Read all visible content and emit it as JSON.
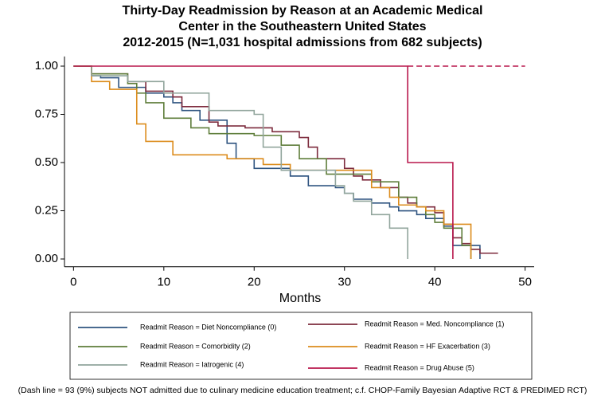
{
  "chart_data": {
    "type": "line",
    "drawstyle": "steps-post",
    "title": [
      "Thirty-Day Readmission by Reason at an Academic Medical",
      "Center in the Southeastern United States",
      "2012-2015 (N=1,031 hospital admissions from 682 subjects)"
    ],
    "x_label": "Months",
    "xlim": [
      -1,
      51
    ],
    "xticks": [
      0,
      10,
      20,
      30,
      40,
      50
    ],
    "ylim": [
      -0.04,
      1.05
    ],
    "yticks": [
      {
        "value": 0,
        "label": "0.00"
      },
      {
        "value": 0.25,
        "label": "0.25"
      },
      {
        "value": 0.5,
        "label": "0.50"
      },
      {
        "value": 0.75,
        "label": "0.75"
      },
      {
        "value": 1,
        "label": "1.00"
      }
    ],
    "grid": false,
    "series": [
      {
        "name": "Readmit Reason = Diet Noncompliance (0)",
        "color": "#2f5480",
        "x": [
          0,
          2,
          3,
          5,
          8,
          10,
          11,
          12,
          14,
          17,
          18,
          20,
          24,
          26,
          29,
          30,
          31,
          33,
          35,
          36,
          38,
          39,
          41,
          42,
          44,
          45
        ],
        "values": [
          1,
          0.95,
          0.94,
          0.89,
          0.86,
          0.84,
          0.81,
          0.77,
          0.72,
          0.6,
          0.52,
          0.47,
          0.43,
          0.38,
          0.37,
          0.34,
          0.31,
          0.29,
          0.27,
          0.25,
          0.23,
          0.21,
          0.17,
          0.07,
          0.07,
          0
        ]
      },
      {
        "name": "Readmit Reason = Med. Noncompliance (1)",
        "color": "#7d2b3d",
        "x": [
          0,
          2,
          6,
          8,
          11,
          12,
          15,
          16,
          19,
          22,
          25,
          26,
          27,
          30,
          31,
          32,
          34,
          36,
          37,
          38,
          40,
          41,
          42,
          43,
          44,
          45,
          47
        ],
        "values": [
          1,
          0.96,
          0.92,
          0.87,
          0.84,
          0.79,
          0.71,
          0.69,
          0.68,
          0.66,
          0.63,
          0.58,
          0.52,
          0.47,
          0.43,
          0.41,
          0.37,
          0.32,
          0.29,
          0.27,
          0.24,
          0.18,
          0.11,
          0.08,
          0.05,
          0.03,
          0.03
        ]
      },
      {
        "name": "Readmit Reason = Comorbidity (2)",
        "color": "#5e7d3a",
        "x": [
          0,
          2,
          6,
          7,
          8,
          10,
          13,
          15,
          20,
          23,
          25,
          28,
          33,
          36,
          38,
          39,
          40,
          41,
          43,
          44
        ],
        "values": [
          1,
          0.96,
          0.91,
          0.86,
          0.81,
          0.73,
          0.68,
          0.65,
          0.64,
          0.59,
          0.52,
          0.44,
          0.4,
          0.32,
          0.27,
          0.23,
          0.19,
          0.16,
          0.07,
          0
        ]
      },
      {
        "name": "Readmit Reason = HF Exacerbation (3)",
        "color": "#dc8c1c",
        "x": [
          0,
          2,
          4,
          7,
          8,
          11,
          17,
          21,
          24,
          28,
          33,
          35,
          36,
          38,
          39,
          41,
          43,
          44
        ],
        "values": [
          1,
          0.92,
          0.88,
          0.7,
          0.61,
          0.54,
          0.52,
          0.49,
          0.46,
          0.46,
          0.37,
          0.32,
          0.28,
          0.27,
          0.25,
          0.18,
          0.18,
          0
        ]
      },
      {
        "name": "Readmit Reason = Iatrogenic (4)",
        "color": "#91a59c",
        "x": [
          0,
          2,
          6,
          10,
          15,
          17,
          20,
          21,
          23,
          27,
          29,
          30,
          31,
          33,
          35,
          36,
          37
        ],
        "values": [
          1,
          0.95,
          0.92,
          0.86,
          0.77,
          0.77,
          0.75,
          0.58,
          0.46,
          0.46,
          0.38,
          0.34,
          0.3,
          0.23,
          0.16,
          0.16,
          0
        ]
      },
      {
        "name": "Readmit Reason = Drug  Abuse (5)",
        "color": "#b8174c",
        "x": [
          0,
          37,
          42
        ],
        "values": [
          1,
          0.5,
          0
        ]
      }
    ],
    "reference_line": {
      "value": 1,
      "x": [
        37,
        50
      ],
      "color": "#b8174c",
      "dash": true
    },
    "note": "(Dash line = 93 (9%) subjects NOT admitted due to culinary medicine education treatment; c.f. CHOP-Family Bayesian Adaptive RCT & PREDIMED RCT)"
  }
}
